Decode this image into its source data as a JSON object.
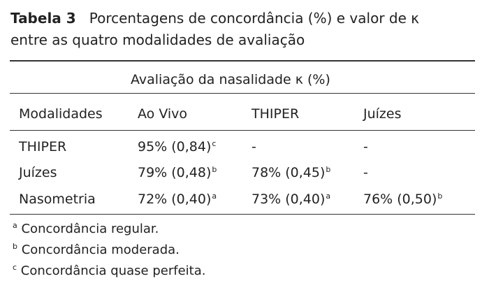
{
  "caption": {
    "label": "Tabela 3",
    "text_line1": "Porcentagens de concordância (%) e valor de κ",
    "text_line2": "entre as quatro modalidades de avaliação"
  },
  "table": {
    "group_header": "Avaliação da nasalidade κ (%)",
    "columns": [
      "Modalidades",
      "Ao Vivo",
      "THIPER",
      "Juízes"
    ],
    "rows": [
      [
        {
          "text": "THIPER"
        },
        {
          "text": "95% (0,84)",
          "sup": "c"
        },
        {
          "text": "-"
        },
        {
          "text": "-"
        }
      ],
      [
        {
          "text": "Juízes"
        },
        {
          "text": "79% (0,48)",
          "sup": "b"
        },
        {
          "text": "78% (0,45)",
          "sup": "b"
        },
        {
          "text": "-"
        }
      ],
      [
        {
          "text": "Nasometria"
        },
        {
          "text": "72% (0,40)",
          "sup": "a"
        },
        {
          "text": "73% (0,40)",
          "sup": "a"
        },
        {
          "text": "76% (0,50)",
          "sup": "b"
        }
      ]
    ]
  },
  "footnotes": [
    {
      "mark": "a",
      "text": "Concordância regular."
    },
    {
      "mark": "b",
      "text": "Concordância moderada."
    },
    {
      "mark": "c",
      "text": "Concordância quase perfeita."
    }
  ]
}
